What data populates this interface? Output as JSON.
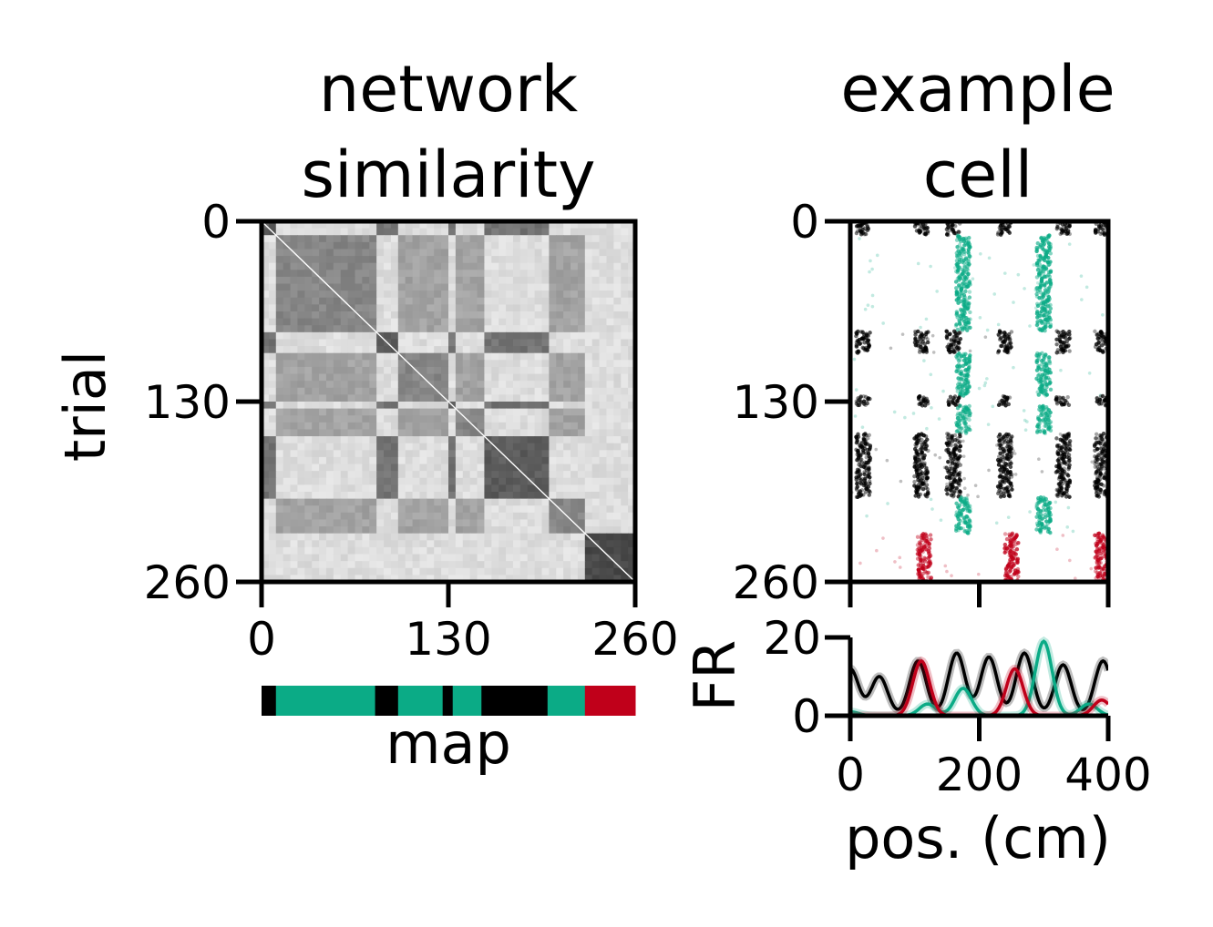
{
  "colors": {
    "map_a": "#000000",
    "map_b": "#0bab86",
    "map_c": "#c0001a"
  },
  "chart_data": [
    {
      "type": "heatmap",
      "title_lines": [
        "network",
        "similarity"
      ],
      "ylabel": "trial",
      "xlabel": "map",
      "xlim": [
        0,
        260
      ],
      "ylim": [
        0,
        260
      ],
      "xticks": [
        "0",
        "130",
        "260"
      ],
      "yticks": [
        "0",
        "130",
        "260"
      ],
      "colormap": "grayscale",
      "map_segments": [
        {
          "start": 0,
          "end": 10,
          "color": "#000000"
        },
        {
          "start": 10,
          "end": 79,
          "color": "#0bab86"
        },
        {
          "start": 79,
          "end": 95,
          "color": "#000000"
        },
        {
          "start": 95,
          "end": 126,
          "color": "#0bab86"
        },
        {
          "start": 126,
          "end": 133,
          "color": "#000000"
        },
        {
          "start": 133,
          "end": 153,
          "color": "#0bab86"
        },
        {
          "start": 153,
          "end": 199,
          "color": "#000000"
        },
        {
          "start": 199,
          "end": 225,
          "color": "#0bab86"
        },
        {
          "start": 225,
          "end": 260,
          "color": "#c0001a"
        }
      ]
    },
    {
      "type": "scatter",
      "title_lines": [
        "example",
        "cell"
      ],
      "xlim": [
        0,
        400
      ],
      "ylim": [
        0,
        260
      ],
      "yticks": [
        "0",
        "130",
        "260"
      ],
      "firing_fields_cm": {
        "#000000": [
          20,
          110,
          160,
          240,
          330,
          390
        ],
        "#0bab86": [
          175,
          300
        ],
        "#c0001a": [
          115,
          250,
          390
        ]
      }
    },
    {
      "type": "line",
      "ylabel": "FR",
      "xlabel": "pos. (cm)",
      "xlim": [
        0,
        400
      ],
      "ylim": [
        0,
        20
      ],
      "xticks": [
        "0",
        "200",
        "400"
      ],
      "yticks": [
        "0",
        "20"
      ],
      "series": [
        {
          "color": "#000000",
          "peaks": [
            [
              0,
              12
            ],
            [
              45,
              10
            ],
            [
              105,
              14
            ],
            [
              165,
              16
            ],
            [
              215,
              15
            ],
            [
              270,
              16
            ],
            [
              330,
              13
            ],
            [
              392,
              14
            ]
          ]
        },
        {
          "color": "#0bab86",
          "peaks": [
            [
              0,
              1
            ],
            [
              120,
              3
            ],
            [
              175,
              7
            ],
            [
              300,
              19
            ],
            [
              370,
              3
            ]
          ]
        },
        {
          "color": "#c0001a",
          "peaks": [
            [
              110,
              14
            ],
            [
              255,
              12
            ],
            [
              390,
              4
            ]
          ]
        }
      ]
    }
  ]
}
